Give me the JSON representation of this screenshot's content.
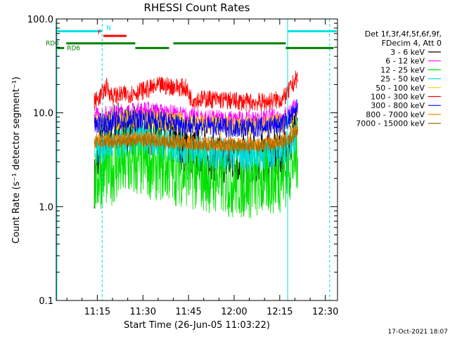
{
  "chart_data": {
    "type": "line",
    "title": "RHESSI Count Rates",
    "xlabel": "Start Time (26-Jun-05 11:03:22)",
    "ylabel": "Count Rate (s⁻¹ detector segment⁻¹)",
    "yscale": "log",
    "ylim": [
      0.1,
      100
    ],
    "xlim_minutes": [
      1.5,
      94.0
    ],
    "x_ticks": [
      {
        "label": "11:15",
        "minute": 15
      },
      {
        "label": "11:30",
        "minute": 30
      },
      {
        "label": "11:45",
        "minute": 45
      },
      {
        "label": "12:00",
        "minute": 60
      },
      {
        "label": "12:15",
        "minute": 75
      },
      {
        "label": "12:30",
        "minute": 90
      }
    ],
    "y_ticks": [
      {
        "label": "0.1",
        "value": 0.1
      },
      {
        "label": "1.0",
        "value": 1
      },
      {
        "label": "10.0",
        "value": 10
      },
      {
        "label": "100.0",
        "value": 100
      }
    ],
    "legend_header": [
      "Det 1f,3f,4f,5f,6f,9f,",
      "FDecim 4, Att 0"
    ],
    "legend_placement": "right",
    "series": [
      {
        "name": "3 - 6 keV",
        "color": "#000000",
        "x": [
          14,
          16,
          20,
          26,
          30,
          34,
          40,
          46,
          52,
          58,
          64,
          70,
          76,
          78,
          80,
          81
        ],
        "y": [
          1.8,
          4.5,
          7.0,
          6.5,
          6.0,
          6.5,
          5.0,
          4.0,
          3.5,
          3.2,
          3.2,
          3.4,
          3.8,
          4.3,
          5.5,
          6.5
        ]
      },
      {
        "name": "6 - 12 keV",
        "color": "#ff00ff",
        "x": [
          14,
          20,
          26,
          30,
          34,
          40,
          46,
          52,
          58,
          64,
          70,
          76,
          78,
          80,
          81
        ],
        "y": [
          9.0,
          9.5,
          10.0,
          10.5,
          10.2,
          9.5,
          8.8,
          8.5,
          8.3,
          8.2,
          8.4,
          9.0,
          10.0,
          11.0,
          12.0
        ]
      },
      {
        "name": "12 - 25 keV",
        "color": "#00e000",
        "x": [
          14,
          16,
          20,
          26,
          30,
          34,
          40,
          46,
          52,
          58,
          64,
          70,
          76,
          78,
          80,
          81
        ],
        "y": [
          1.8,
          2.3,
          2.6,
          2.9,
          3.0,
          2.9,
          2.6,
          2.3,
          2.1,
          1.9,
          1.8,
          1.9,
          2.2,
          2.6,
          3.3,
          3.8
        ]
      },
      {
        "name": "25 - 50 keV",
        "color": "#00e0e0",
        "x": [
          14,
          20,
          26,
          30,
          34,
          40,
          46,
          52,
          58,
          64,
          70,
          76,
          78,
          80,
          81
        ],
        "y": [
          4.2,
          4.5,
          5.0,
          5.3,
          5.0,
          4.4,
          4.0,
          3.8,
          3.6,
          3.5,
          3.6,
          4.0,
          4.6,
          5.5,
          6.2
        ]
      },
      {
        "name": "50 - 100 keV",
        "color": "#ffcc00",
        "x": [
          14,
          20,
          26,
          30,
          34,
          40,
          46,
          52,
          58,
          64,
          70,
          76,
          78,
          80,
          81
        ],
        "y": [
          8.0,
          8.2,
          8.5,
          8.8,
          8.5,
          8.0,
          7.6,
          7.4,
          7.2,
          7.1,
          7.3,
          7.8,
          8.5,
          9.5,
          10.2
        ]
      },
      {
        "name": "100 - 300 keV",
        "color": "#ff0000",
        "x": [
          14,
          16,
          18,
          20,
          26,
          32,
          36,
          40,
          44,
          46,
          52,
          58,
          64,
          70,
          76,
          78,
          80,
          81
        ],
        "y": [
          13.0,
          15.0,
          19.0,
          15.0,
          16.0,
          18.0,
          19.5,
          19.0,
          18.5,
          14.0,
          14.0,
          13.5,
          13.0,
          13.0,
          14.0,
          17.0,
          22.0,
          24.0
        ]
      },
      {
        "name": "300 - 800 keV",
        "color": "#0000ff",
        "x": [
          14,
          20,
          26,
          30,
          34,
          40,
          46,
          52,
          58,
          64,
          70,
          76,
          78,
          80,
          81
        ],
        "y": [
          7.5,
          8.0,
          8.3,
          8.6,
          8.3,
          7.8,
          7.4,
          7.2,
          7.0,
          6.9,
          7.1,
          7.6,
          8.5,
          10.0,
          12.0
        ]
      },
      {
        "name": "800 - 7000 keV",
        "color": "#ff8000",
        "x": [
          14,
          20,
          26,
          30,
          34,
          40,
          46,
          52,
          58,
          64,
          70,
          76,
          78,
          80,
          81
        ],
        "y": [
          5.0,
          5.1,
          5.3,
          5.4,
          5.2,
          5.0,
          4.8,
          4.7,
          4.6,
          4.6,
          4.7,
          5.0,
          5.5,
          6.2,
          7.0
        ]
      },
      {
        "name": "7000 - 15000 keV",
        "color": "#a07000",
        "x": [
          14,
          20,
          26,
          30,
          34,
          40,
          46,
          52,
          58,
          64,
          70,
          76,
          78,
          80,
          81
        ],
        "y": [
          4.8,
          4.9,
          5.0,
          5.1,
          5.0,
          4.8,
          4.6,
          4.5,
          4.5,
          4.4,
          4.5,
          4.8,
          5.2,
          5.8,
          6.5
        ]
      }
    ],
    "vertical_markers": [
      {
        "minute": 1.7,
        "style": "solid",
        "color": "#00e0e0"
      },
      {
        "minute": 16.6,
        "style": "dashed",
        "color": "#00e0e0"
      },
      {
        "minute": 77.6,
        "style": "solid",
        "color": "#00e0e0"
      },
      {
        "minute": 91.4,
        "style": "dashed",
        "color": "#00e0e0"
      }
    ],
    "flag_bars": [
      {
        "label": "N",
        "color": "#00e0e0",
        "level": 74,
        "from": 1.7,
        "to": 16.6
      },
      {
        "label": "",
        "color": "#00e0e0",
        "level": 74,
        "from": 77.6,
        "to": 93.7
      },
      {
        "label": "F",
        "color": "#ff0000",
        "level": 66,
        "from": 17.0,
        "to": 24.6
      },
      {
        "label": "RD0",
        "color": "#008000",
        "level": 55,
        "from": 4.8,
        "to": 27.5
      },
      {
        "label": "",
        "color": "#008000",
        "level": 55,
        "from": 40.0,
        "to": 77.0
      },
      {
        "label": "RD6",
        "color": "#008000",
        "level": 49,
        "from": 1.7,
        "to": 4.1
      },
      {
        "label": "",
        "color": "#008000",
        "level": 49,
        "from": 27.5,
        "to": 38.6
      },
      {
        "label": "",
        "color": "#008000",
        "level": 49,
        "from": 77.0,
        "to": 92.7
      }
    ],
    "grid": false,
    "footnote": "17-Oct-2021 18:07"
  }
}
